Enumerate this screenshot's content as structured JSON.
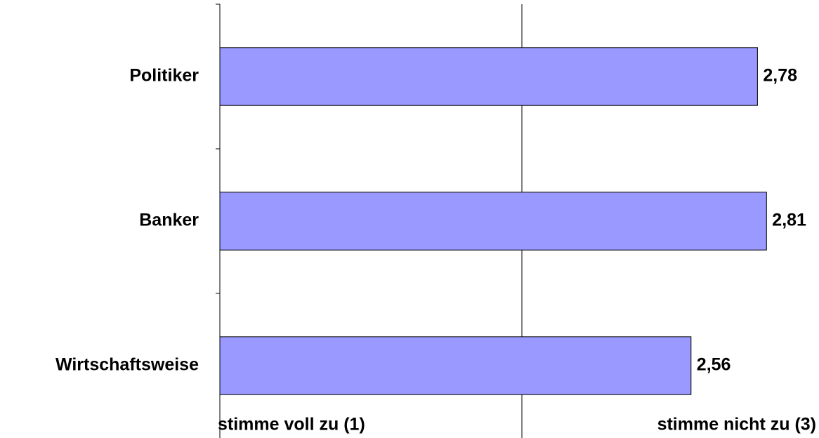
{
  "chart_data": {
    "type": "bar",
    "orientation": "horizontal",
    "categories": [
      "Politiker",
      "Banker",
      "Wirtschaftsweise"
    ],
    "values": [
      2.78,
      2.81,
      2.56
    ],
    "value_labels": [
      "2,78",
      "2,81",
      "2,56"
    ],
    "color": "#9999ff",
    "xlim": [
      1,
      3
    ],
    "xticks": [
      {
        "value": 1,
        "label": "stimme voll zu (1)"
      },
      {
        "value": 3,
        "label": "stimme nicht zu (3)"
      }
    ],
    "xgrid": [
      2
    ]
  }
}
